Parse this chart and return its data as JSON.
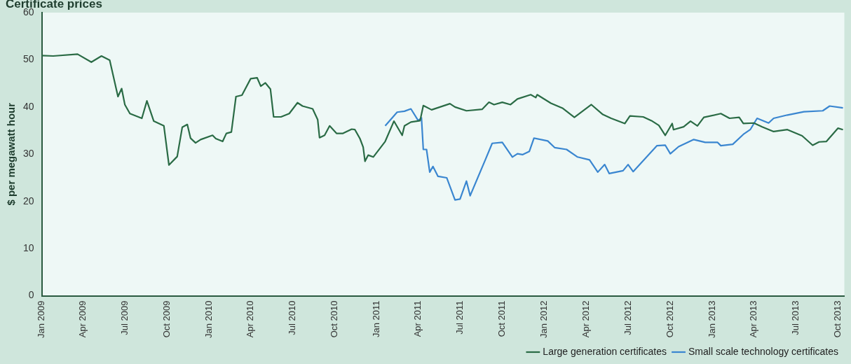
{
  "chart_data": {
    "type": "line",
    "title": "Certificate prices",
    "ylabel": "$ per megawatt hour",
    "xlim": [
      "2009-01-01",
      "2013-10-15"
    ],
    "ylim": [
      0,
      60
    ],
    "yticks": [
      0,
      10,
      20,
      30,
      40,
      50,
      60
    ],
    "xticks": [
      {
        "value": "2009-01-01",
        "label": "Jan 2009"
      },
      {
        "value": "2009-04-01",
        "label": "Apr 2009"
      },
      {
        "value": "2009-07-01",
        "label": "Jul 2009"
      },
      {
        "value": "2009-10-01",
        "label": "Oct 2009"
      },
      {
        "value": "2010-01-01",
        "label": "Jan 2010"
      },
      {
        "value": "2010-04-01",
        "label": "Apr 2010"
      },
      {
        "value": "2010-07-01",
        "label": "Jul 2010"
      },
      {
        "value": "2010-10-01",
        "label": "Oct 2010"
      },
      {
        "value": "2011-01-01",
        "label": "Jan 2011"
      },
      {
        "value": "2011-04-01",
        "label": "Apr 2011"
      },
      {
        "value": "2011-07-01",
        "label": "Jul 2011"
      },
      {
        "value": "2011-10-01",
        "label": "Oct 2011"
      },
      {
        "value": "2012-01-01",
        "label": "Jan 2012"
      },
      {
        "value": "2012-04-01",
        "label": "Apr 2012"
      },
      {
        "value": "2012-07-01",
        "label": "Jul 2012"
      },
      {
        "value": "2012-10-01",
        "label": "Oct 2012"
      },
      {
        "value": "2013-01-01",
        "label": "Jan 2013"
      },
      {
        "value": "2013-04-01",
        "label": "Apr 2013"
      },
      {
        "value": "2013-07-01",
        "label": "Jul 2013"
      },
      {
        "value": "2013-10-01",
        "label": "Oct 2013"
      }
    ],
    "grid": false,
    "legend": "bottom right",
    "marker": "none",
    "line_style": "solid",
    "series": [
      {
        "name": "Large generation certificates",
        "color": "#2a6b45",
        "x": [
          "2009-01-01",
          "2009-01-26",
          "2009-03-20",
          "2009-04-19",
          "2009-05-11",
          "2009-05-29",
          "2009-06-16",
          "2009-06-24",
          "2009-07-01",
          "2009-07-12",
          "2009-08-07",
          "2009-08-18",
          "2009-09-02",
          "2009-09-24",
          "2009-10-05",
          "2009-10-23",
          "2009-11-03",
          "2009-11-14",
          "2009-11-21",
          "2009-12-02",
          "2009-12-13",
          "2010-01-08",
          "2010-01-15",
          "2010-01-30",
          "2010-02-07",
          "2010-02-18",
          "2010-02-28",
          "2010-03-13",
          "2010-04-01",
          "2010-04-15",
          "2010-04-23",
          "2010-05-03",
          "2010-05-14",
          "2010-05-21",
          "2010-06-06",
          "2010-06-24",
          "2010-07-12",
          "2010-07-23",
          "2010-08-14",
          "2010-08-25",
          "2010-08-29",
          "2010-09-09",
          "2010-09-20",
          "2010-10-05",
          "2010-10-19",
          "2010-11-07",
          "2010-11-14",
          "2010-11-25",
          "2010-12-02",
          "2010-12-06",
          "2010-12-13",
          "2010-12-24",
          "2011-01-19",
          "2011-02-07",
          "2011-02-25",
          "2011-03-02",
          "2011-03-16",
          "2011-04-05",
          "2011-04-12",
          "2011-04-30",
          "2011-06-09",
          "2011-06-20",
          "2011-07-15",
          "2011-08-18",
          "2011-09-02",
          "2011-09-13",
          "2011-10-01",
          "2011-10-19",
          "2011-11-03",
          "2011-12-02",
          "2011-12-13",
          "2011-12-16",
          "2012-01-15",
          "2012-02-10",
          "2012-03-06",
          "2012-04-12",
          "2012-05-07",
          "2012-05-25",
          "2012-06-24",
          "2012-07-05",
          "2012-08-03",
          "2012-08-21",
          "2012-09-06",
          "2012-09-20",
          "2012-10-05",
          "2012-10-08",
          "2012-10-30",
          "2012-11-14",
          "2012-11-29",
          "2012-12-13",
          "2013-01-19",
          "2013-02-07",
          "2013-02-28",
          "2013-03-09",
          "2013-04-01",
          "2013-04-19",
          "2013-05-14",
          "2013-06-13",
          "2013-07-15",
          "2013-08-07",
          "2013-08-21",
          "2013-09-06",
          "2013-10-01",
          "2013-10-12"
        ],
        "values": [
          50.9,
          50.8,
          51.2,
          49.5,
          50.8,
          49.9,
          42.2,
          43.9,
          40.5,
          38.6,
          37.6,
          41.3,
          37.0,
          36.0,
          27.7,
          29.5,
          35.7,
          36.3,
          33.4,
          32.4,
          33.1,
          34.0,
          33.3,
          32.7,
          34.4,
          34.7,
          42.2,
          42.5,
          46.0,
          46.2,
          44.4,
          45.1,
          43.8,
          37.9,
          37.9,
          38.6,
          40.9,
          40.2,
          39.6,
          37.3,
          33.5,
          34.0,
          36.0,
          34.4,
          34.4,
          35.3,
          35.2,
          33.3,
          31.5,
          28.5,
          29.8,
          29.4,
          32.7,
          37.0,
          34.0,
          36.0,
          36.8,
          37.1,
          40.3,
          39.4,
          40.7,
          40.0,
          39.2,
          39.5,
          41.0,
          40.5,
          41.0,
          40.5,
          41.7,
          42.6,
          42.0,
          42.6,
          40.8,
          39.7,
          37.8,
          40.5,
          38.4,
          37.6,
          36.5,
          38.1,
          37.9,
          37.1,
          36.1,
          34.0,
          36.5,
          35.2,
          35.8,
          37.0,
          36.0,
          37.8,
          38.6,
          37.6,
          37.8,
          36.5,
          36.6,
          35.8,
          34.8,
          35.2,
          33.9,
          31.9,
          32.6,
          32.7,
          35.5,
          35.2
        ]
      },
      {
        "name": "Small scale technology certificates",
        "color": "#3a86d0",
        "x": [
          "2011-01-19",
          "2011-02-14",
          "2011-03-02",
          "2011-03-16",
          "2011-04-01",
          "2011-04-08",
          "2011-04-12",
          "2011-04-19",
          "2011-04-26",
          "2011-05-03",
          "2011-05-14",
          "2011-06-02",
          "2011-06-20",
          "2011-07-01",
          "2011-07-15",
          "2011-07-23",
          "2011-08-25",
          "2011-09-09",
          "2011-10-01",
          "2011-10-23",
          "2011-11-03",
          "2011-11-14",
          "2011-11-29",
          "2011-12-09",
          "2012-01-08",
          "2012-01-23",
          "2012-02-18",
          "2012-03-13",
          "2012-04-08",
          "2012-04-26",
          "2012-05-11",
          "2012-05-21",
          "2012-06-20",
          "2012-07-01",
          "2012-07-12",
          "2012-09-02",
          "2012-09-20",
          "2012-10-01",
          "2012-10-19",
          "2012-11-21",
          "2012-12-16",
          "2013-01-12",
          "2013-01-19",
          "2013-02-14",
          "2013-03-09",
          "2013-03-24",
          "2013-04-08",
          "2013-05-03",
          "2013-05-14",
          "2013-06-13",
          "2013-07-19",
          "2013-08-29",
          "2013-09-13",
          "2013-10-12"
        ],
        "values": [
          36.0,
          38.9,
          39.1,
          39.6,
          37.1,
          37.7,
          31.0,
          31.0,
          26.2,
          27.4,
          25.3,
          25.0,
          20.3,
          20.5,
          24.3,
          21.2,
          28.8,
          32.3,
          32.5,
          29.4,
          30.1,
          29.9,
          30.6,
          33.4,
          32.8,
          31.4,
          31.0,
          29.4,
          28.8,
          26.2,
          27.8,
          25.9,
          26.5,
          27.8,
          26.3,
          31.8,
          31.9,
          30.1,
          31.6,
          33.1,
          32.5,
          32.5,
          31.8,
          32.1,
          34.2,
          35.2,
          37.6,
          36.6,
          37.6,
          38.3,
          39.0,
          39.2,
          40.2,
          39.8
        ]
      }
    ]
  }
}
